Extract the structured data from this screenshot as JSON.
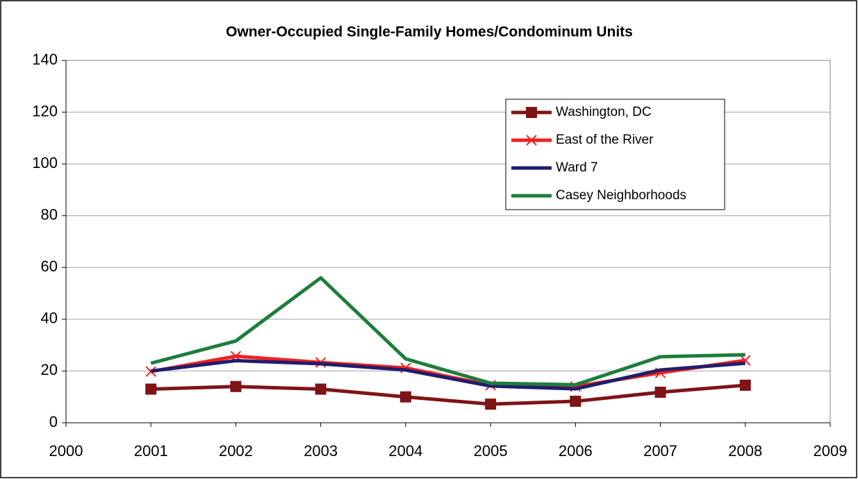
{
  "chart_data": {
    "type": "line",
    "title": "Owner-Occupied Single-Family Homes/Condominum Units",
    "x": [
      2001,
      2002,
      2003,
      2004,
      2005,
      2006,
      2007,
      2008
    ],
    "series": [
      {
        "name": "Washington, DC",
        "color": "#7f1416",
        "marker": "square",
        "values": [
          13,
          14,
          13,
          10,
          7.2,
          8.3,
          11.8,
          14.5
        ]
      },
      {
        "name": "East of the River",
        "color": "#f02020",
        "marker": "x",
        "values": [
          19.8,
          25.7,
          23.3,
          21.2,
          14.5,
          14,
          19.3,
          24.1
        ]
      },
      {
        "name": "Ward 7",
        "color": "#221d6b",
        "marker": null,
        "values": [
          20,
          24,
          22.8,
          20.4,
          14.2,
          13.1,
          20.4,
          23
        ]
      },
      {
        "name": "Casey Neighborhoods",
        "color": "#1e7d3c",
        "marker": null,
        "values": [
          23,
          31.6,
          56,
          24.7,
          15.3,
          14.7,
          25.5,
          26.3
        ]
      }
    ],
    "xlim": [
      2000,
      2009
    ],
    "xticks": [
      2000,
      2001,
      2002,
      2003,
      2004,
      2005,
      2006,
      2007,
      2008,
      2009
    ],
    "ylim": [
      0,
      140
    ],
    "yticks": [
      0,
      20,
      40,
      60,
      80,
      100,
      120,
      140
    ],
    "grid": true,
    "legend": "upper right"
  }
}
